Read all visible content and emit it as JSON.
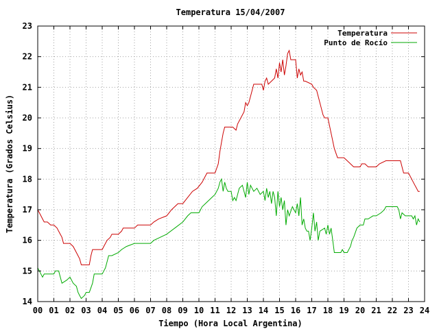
{
  "chart_data": {
    "type": "line",
    "title": "Temperatura 15/04/2007",
    "xlabel": "Tiempo (Hora Local Argentina)",
    "ylabel": "Temperatura (Grados Celsius)",
    "xlim": [
      0,
      24
    ],
    "ylim": [
      14,
      23
    ],
    "x_ticks": [
      "00",
      "01",
      "02",
      "03",
      "04",
      "05",
      "06",
      "07",
      "08",
      "09",
      "10",
      "11",
      "12",
      "13",
      "14",
      "15",
      "16",
      "17",
      "18",
      "19",
      "20",
      "21",
      "22",
      "23",
      "24"
    ],
    "y_ticks": [
      14,
      15,
      16,
      17,
      18,
      19,
      20,
      21,
      22,
      23
    ],
    "grid": true,
    "legend_position": "top-right",
    "series": [
      {
        "name": "Temperatura",
        "color": "#cc0000",
        "points": [
          [
            0.0,
            17.0
          ],
          [
            0.1,
            16.9
          ],
          [
            0.2,
            16.8
          ],
          [
            0.3,
            16.7
          ],
          [
            0.4,
            16.6
          ],
          [
            0.6,
            16.6
          ],
          [
            0.8,
            16.5
          ],
          [
            1.0,
            16.5
          ],
          [
            1.2,
            16.4
          ],
          [
            1.3,
            16.3
          ],
          [
            1.4,
            16.2
          ],
          [
            1.5,
            16.1
          ],
          [
            1.6,
            15.9
          ],
          [
            2.0,
            15.9
          ],
          [
            2.2,
            15.8
          ],
          [
            2.4,
            15.6
          ],
          [
            2.6,
            15.4
          ],
          [
            2.7,
            15.2
          ],
          [
            3.0,
            15.2
          ],
          [
            3.2,
            15.2
          ],
          [
            3.3,
            15.5
          ],
          [
            3.4,
            15.7
          ],
          [
            3.6,
            15.7
          ],
          [
            4.0,
            15.7
          ],
          [
            4.1,
            15.8
          ],
          [
            4.3,
            16.0
          ],
          [
            4.5,
            16.1
          ],
          [
            4.6,
            16.2
          ],
          [
            5.0,
            16.2
          ],
          [
            5.2,
            16.3
          ],
          [
            5.3,
            16.4
          ],
          [
            6.0,
            16.4
          ],
          [
            6.2,
            16.5
          ],
          [
            7.0,
            16.5
          ],
          [
            7.2,
            16.6
          ],
          [
            7.5,
            16.7
          ],
          [
            8.0,
            16.8
          ],
          [
            8.3,
            17.0
          ],
          [
            8.5,
            17.1
          ],
          [
            8.7,
            17.2
          ],
          [
            9.0,
            17.2
          ],
          [
            9.3,
            17.4
          ],
          [
            9.6,
            17.6
          ],
          [
            9.9,
            17.7
          ],
          [
            10.2,
            17.9
          ],
          [
            10.4,
            18.1
          ],
          [
            10.5,
            18.2
          ],
          [
            11.0,
            18.2
          ],
          [
            11.2,
            18.5
          ],
          [
            11.3,
            18.9
          ],
          [
            11.4,
            19.2
          ],
          [
            11.5,
            19.5
          ],
          [
            11.6,
            19.7
          ],
          [
            12.0,
            19.7
          ],
          [
            12.1,
            19.7
          ],
          [
            12.3,
            19.6
          ],
          [
            12.4,
            19.8
          ],
          [
            12.6,
            20.0
          ],
          [
            12.8,
            20.2
          ],
          [
            12.9,
            20.5
          ],
          [
            13.0,
            20.4
          ],
          [
            13.1,
            20.5
          ],
          [
            13.2,
            20.7
          ],
          [
            13.3,
            20.9
          ],
          [
            13.4,
            21.1
          ],
          [
            13.9,
            21.1
          ],
          [
            14.0,
            20.9
          ],
          [
            14.1,
            21.2
          ],
          [
            14.2,
            21.3
          ],
          [
            14.3,
            21.1
          ],
          [
            14.5,
            21.2
          ],
          [
            14.7,
            21.3
          ],
          [
            14.8,
            21.6
          ],
          [
            14.9,
            21.3
          ],
          [
            15.0,
            21.8
          ],
          [
            15.1,
            21.5
          ],
          [
            15.2,
            21.9
          ],
          [
            15.3,
            21.4
          ],
          [
            15.4,
            21.7
          ],
          [
            15.5,
            22.1
          ],
          [
            15.6,
            22.2
          ],
          [
            15.7,
            21.9
          ],
          [
            16.0,
            21.9
          ],
          [
            16.1,
            21.3
          ],
          [
            16.2,
            21.6
          ],
          [
            16.3,
            21.4
          ],
          [
            16.4,
            21.5
          ],
          [
            16.5,
            21.2
          ],
          [
            16.6,
            21.2
          ],
          [
            17.0,
            21.1
          ],
          [
            17.1,
            21.0
          ],
          [
            17.3,
            20.9
          ],
          [
            17.5,
            20.5
          ],
          [
            17.7,
            20.1
          ],
          [
            17.8,
            20.0
          ],
          [
            18.0,
            20.0
          ],
          [
            18.2,
            19.5
          ],
          [
            18.4,
            19.0
          ],
          [
            18.6,
            18.7
          ],
          [
            19.0,
            18.7
          ],
          [
            19.2,
            18.6
          ],
          [
            19.4,
            18.5
          ],
          [
            19.6,
            18.4
          ],
          [
            20.0,
            18.4
          ],
          [
            20.1,
            18.5
          ],
          [
            20.3,
            18.5
          ],
          [
            20.5,
            18.4
          ],
          [
            21.0,
            18.4
          ],
          [
            21.2,
            18.5
          ],
          [
            21.6,
            18.6
          ],
          [
            22.0,
            18.6
          ],
          [
            22.5,
            18.6
          ],
          [
            22.6,
            18.4
          ],
          [
            22.7,
            18.2
          ],
          [
            23.0,
            18.2
          ],
          [
            23.2,
            18.0
          ],
          [
            23.3,
            17.9
          ],
          [
            23.4,
            17.8
          ],
          [
            23.5,
            17.7
          ],
          [
            23.6,
            17.6
          ],
          [
            23.7,
            17.6
          ]
        ]
      },
      {
        "name": "Punto de Rocío",
        "color": "#00aa00",
        "points": [
          [
            0.0,
            15.1
          ],
          [
            0.1,
            15.0
          ],
          [
            0.2,
            14.9
          ],
          [
            0.3,
            14.8
          ],
          [
            0.4,
            14.9
          ],
          [
            0.6,
            14.9
          ],
          [
            1.0,
            14.9
          ],
          [
            1.1,
            15.0
          ],
          [
            1.3,
            15.0
          ],
          [
            1.4,
            14.8
          ],
          [
            1.5,
            14.6
          ],
          [
            1.8,
            14.7
          ],
          [
            2.0,
            14.8
          ],
          [
            2.2,
            14.6
          ],
          [
            2.4,
            14.5
          ],
          [
            2.5,
            14.3
          ],
          [
            2.6,
            14.2
          ],
          [
            2.7,
            14.1
          ],
          [
            2.9,
            14.2
          ],
          [
            3.0,
            14.3
          ],
          [
            3.2,
            14.3
          ],
          [
            3.4,
            14.6
          ],
          [
            3.5,
            14.9
          ],
          [
            4.0,
            14.9
          ],
          [
            4.1,
            15.0
          ],
          [
            4.2,
            15.1
          ],
          [
            4.3,
            15.3
          ],
          [
            4.4,
            15.5
          ],
          [
            4.6,
            15.5
          ],
          [
            5.0,
            15.6
          ],
          [
            5.2,
            15.7
          ],
          [
            5.5,
            15.8
          ],
          [
            6.0,
            15.9
          ],
          [
            6.5,
            15.9
          ],
          [
            7.0,
            15.9
          ],
          [
            7.2,
            16.0
          ],
          [
            7.6,
            16.1
          ],
          [
            8.0,
            16.2
          ],
          [
            8.5,
            16.4
          ],
          [
            9.0,
            16.6
          ],
          [
            9.3,
            16.8
          ],
          [
            9.5,
            16.9
          ],
          [
            10.0,
            16.9
          ],
          [
            10.2,
            17.1
          ],
          [
            10.4,
            17.2
          ],
          [
            10.6,
            17.3
          ],
          [
            10.8,
            17.4
          ],
          [
            11.0,
            17.5
          ],
          [
            11.2,
            17.7
          ],
          [
            11.3,
            17.9
          ],
          [
            11.4,
            18.0
          ],
          [
            11.5,
            17.6
          ],
          [
            11.6,
            17.9
          ],
          [
            11.7,
            17.7
          ],
          [
            11.8,
            17.6
          ],
          [
            12.0,
            17.6
          ],
          [
            12.1,
            17.3
          ],
          [
            12.2,
            17.4
          ],
          [
            12.3,
            17.3
          ],
          [
            12.4,
            17.5
          ],
          [
            12.5,
            17.7
          ],
          [
            12.7,
            17.8
          ],
          [
            12.9,
            17.4
          ],
          [
            13.0,
            17.9
          ],
          [
            13.1,
            17.5
          ],
          [
            13.2,
            17.8
          ],
          [
            13.4,
            17.6
          ],
          [
            13.6,
            17.7
          ],
          [
            13.8,
            17.5
          ],
          [
            14.0,
            17.6
          ],
          [
            14.1,
            17.3
          ],
          [
            14.2,
            17.7
          ],
          [
            14.3,
            17.4
          ],
          [
            14.4,
            17.6
          ],
          [
            14.5,
            17.2
          ],
          [
            14.6,
            17.6
          ],
          [
            14.7,
            17.4
          ],
          [
            14.8,
            16.8
          ],
          [
            14.9,
            17.6
          ],
          [
            15.0,
            17.1
          ],
          [
            15.1,
            17.4
          ],
          [
            15.2,
            17.0
          ],
          [
            15.3,
            17.3
          ],
          [
            15.4,
            16.5
          ],
          [
            15.5,
            17.0
          ],
          [
            15.6,
            16.8
          ],
          [
            15.8,
            17.1
          ],
          [
            16.0,
            16.9
          ],
          [
            16.1,
            17.2
          ],
          [
            16.2,
            16.8
          ],
          [
            16.3,
            17.4
          ],
          [
            16.4,
            16.5
          ],
          [
            16.5,
            16.7
          ],
          [
            16.6,
            16.4
          ],
          [
            16.7,
            16.3
          ],
          [
            16.8,
            16.3
          ],
          [
            16.9,
            16.0
          ],
          [
            17.0,
            16.4
          ],
          [
            17.1,
            16.9
          ],
          [
            17.2,
            16.3
          ],
          [
            17.3,
            16.6
          ],
          [
            17.4,
            16.0
          ],
          [
            17.5,
            16.3
          ],
          [
            17.8,
            16.4
          ],
          [
            17.9,
            16.2
          ],
          [
            18.0,
            16.5
          ],
          [
            18.1,
            16.2
          ],
          [
            18.2,
            16.4
          ],
          [
            18.3,
            16.0
          ],
          [
            18.4,
            15.6
          ],
          [
            18.5,
            15.6
          ],
          [
            18.8,
            15.6
          ],
          [
            18.9,
            15.7
          ],
          [
            19.0,
            15.6
          ],
          [
            19.2,
            15.6
          ],
          [
            19.4,
            15.8
          ],
          [
            19.5,
            16.0
          ],
          [
            19.6,
            16.1
          ],
          [
            19.8,
            16.4
          ],
          [
            20.0,
            16.5
          ],
          [
            20.2,
            16.5
          ],
          [
            20.3,
            16.7
          ],
          [
            20.5,
            16.7
          ],
          [
            20.8,
            16.8
          ],
          [
            21.0,
            16.8
          ],
          [
            21.3,
            16.9
          ],
          [
            21.5,
            17.0
          ],
          [
            21.6,
            17.1
          ],
          [
            22.0,
            17.1
          ],
          [
            22.3,
            17.1
          ],
          [
            22.4,
            17.0
          ],
          [
            22.5,
            16.7
          ],
          [
            22.6,
            16.9
          ],
          [
            22.8,
            16.8
          ],
          [
            23.0,
            16.8
          ],
          [
            23.2,
            16.8
          ],
          [
            23.3,
            16.7
          ],
          [
            23.4,
            16.8
          ],
          [
            23.5,
            16.5
          ],
          [
            23.6,
            16.7
          ],
          [
            23.7,
            16.6
          ]
        ]
      }
    ]
  }
}
